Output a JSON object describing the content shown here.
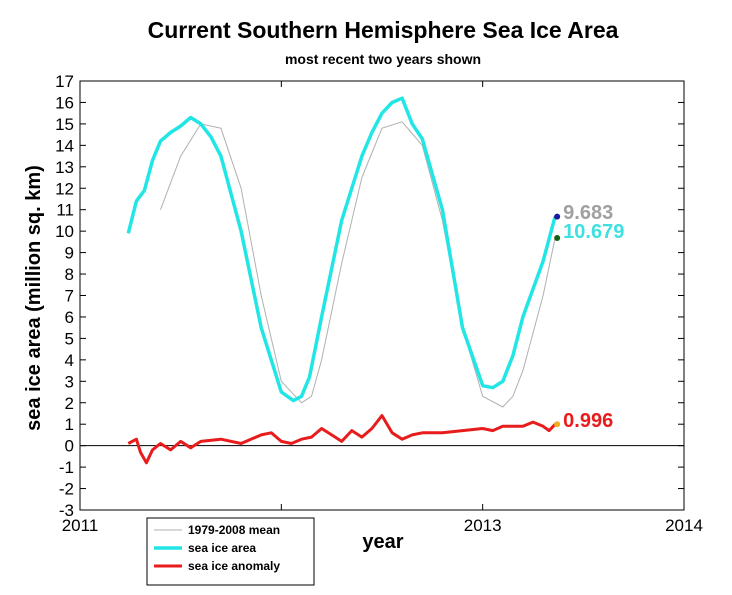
{
  "chart_data": {
    "type": "line",
    "title": "Current Southern Hemisphere Sea Ice Area",
    "subtitle": "most recent two years shown",
    "xlabel": "year",
    "ylabel": "sea ice area (million sq. km)",
    "xlim": [
      2011,
      2014
    ],
    "ylim": [
      -3,
      17
    ],
    "xticks": [
      2011,
      2012,
      2013,
      2014
    ],
    "yticks": [
      -3,
      -2,
      -1,
      0,
      1,
      2,
      3,
      4,
      5,
      6,
      7,
      8,
      9,
      10,
      11,
      12,
      13,
      14,
      15,
      16,
      17
    ],
    "grid": false,
    "legend_position": "bottom-left",
    "series": [
      {
        "name": "1979-2008 mean",
        "color": "#b0b0b0",
        "x": [
          2011.4,
          2011.5,
          2011.6,
          2011.7,
          2011.8,
          2011.9,
          2012.0,
          2012.1,
          2012.15,
          2012.2,
          2012.3,
          2012.4,
          2012.5,
          2012.6,
          2012.7,
          2012.8,
          2012.9,
          2013.0,
          2013.1,
          2013.15,
          2013.2,
          2013.3,
          2013.36
        ],
        "y": [
          11.0,
          13.5,
          15.0,
          14.8,
          12.0,
          7.0,
          3.0,
          2.0,
          2.3,
          4.0,
          8.5,
          12.5,
          14.8,
          15.1,
          14.0,
          10.5,
          5.5,
          2.3,
          1.8,
          2.3,
          3.5,
          7.0,
          9.683
        ]
      },
      {
        "name": "sea ice area",
        "color": "#22e5e5",
        "x": [
          2011.24,
          2011.28,
          2011.32,
          2011.36,
          2011.4,
          2011.45,
          2011.5,
          2011.55,
          2011.6,
          2011.65,
          2011.7,
          2011.8,
          2011.9,
          2012.0,
          2012.06,
          2012.1,
          2012.14,
          2012.2,
          2012.3,
          2012.4,
          2012.45,
          2012.5,
          2012.55,
          2012.6,
          2012.65,
          2012.7,
          2012.8,
          2012.9,
          2013.0,
          2013.05,
          2013.1,
          2013.15,
          2013.2,
          2013.3,
          2013.36
        ],
        "y": [
          9.9,
          11.4,
          11.9,
          13.3,
          14.2,
          14.6,
          14.9,
          15.3,
          15.0,
          14.4,
          13.5,
          10.0,
          5.5,
          2.5,
          2.1,
          2.3,
          3.2,
          6.0,
          10.5,
          13.5,
          14.6,
          15.5,
          16.0,
          16.2,
          15.0,
          14.3,
          11.0,
          5.5,
          2.8,
          2.7,
          3.0,
          4.2,
          6.0,
          8.6,
          10.679
        ]
      },
      {
        "name": "sea ice anomaly",
        "color": "#e81c1c",
        "x": [
          2011.24,
          2011.28,
          2011.3,
          2011.33,
          2011.36,
          2011.4,
          2011.45,
          2011.5,
          2011.55,
          2011.6,
          2011.7,
          2011.8,
          2011.9,
          2011.95,
          2012.0,
          2012.05,
          2012.1,
          2012.15,
          2012.2,
          2012.25,
          2012.3,
          2012.35,
          2012.4,
          2012.45,
          2012.5,
          2012.55,
          2012.6,
          2012.65,
          2012.7,
          2012.8,
          2012.9,
          2013.0,
          2013.05,
          2013.1,
          2013.2,
          2013.25,
          2013.3,
          2013.33,
          2013.36
        ],
        "y": [
          0.1,
          0.3,
          -0.3,
          -0.8,
          -0.2,
          0.1,
          -0.2,
          0.2,
          -0.1,
          0.2,
          0.3,
          0.1,
          0.5,
          0.6,
          0.2,
          0.1,
          0.3,
          0.4,
          0.8,
          0.5,
          0.2,
          0.7,
          0.4,
          0.8,
          1.4,
          0.6,
          0.3,
          0.5,
          0.6,
          0.6,
          0.7,
          0.8,
          0.7,
          0.9,
          0.9,
          1.1,
          0.9,
          0.7,
          0.996
        ]
      }
    ],
    "end_markers": [
      {
        "x": 2013.36,
        "y": 10.679,
        "color": "#1a1aa0"
      },
      {
        "x": 2013.36,
        "y": 9.683,
        "color": "#106010"
      },
      {
        "x": 2013.36,
        "y": 0.996,
        "color": "#f0b020"
      }
    ],
    "end_labels": [
      {
        "text": "10.679",
        "color": "#3fe0e0",
        "x": 2013.36,
        "y": 10.0
      },
      {
        "text": "9.683",
        "color": "#a0a0a0",
        "x": 2013.36,
        "y": 10.9
      },
      {
        "text": "0.996",
        "color": "#e81c1c",
        "x": 2013.36,
        "y": 1.2
      }
    ]
  }
}
